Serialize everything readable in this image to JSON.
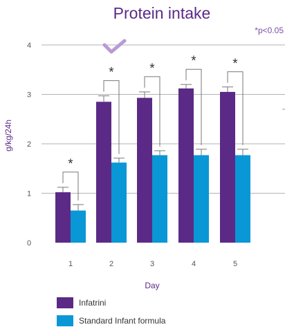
{
  "chart_data": {
    "type": "bar",
    "title": "Protein intake",
    "xlabel": "Day",
    "ylabel": "g/kg/24h",
    "categories": [
      "1",
      "2",
      "3",
      "4",
      "5"
    ],
    "ylim": [
      0,
      4
    ],
    "yticks": [
      "0",
      "1",
      "2",
      "3",
      "4"
    ],
    "grid": true,
    "series": [
      {
        "name": "Infatrini",
        "color": "#5b2a86",
        "values": [
          1.02,
          2.85,
          2.93,
          3.12,
          3.05
        ],
        "error": [
          0.1,
          0.12,
          0.12,
          0.08,
          0.1
        ]
      },
      {
        "name": "Standard Infant formula",
        "color": "#0a97d6",
        "values": [
          0.65,
          1.62,
          1.77,
          1.77,
          1.77
        ],
        "error": [
          0.12,
          0.09,
          0.09,
          0.12,
          0.12
        ]
      }
    ],
    "significance": {
      "marker": "*",
      "note": "*p<0.05",
      "days": [
        "1",
        "2",
        "3",
        "4",
        "5"
      ]
    },
    "legend_position": "bottom-left",
    "colors": {
      "accent": "#7b4fa7",
      "check": "#b89ad6",
      "grid": "#999999"
    }
  }
}
